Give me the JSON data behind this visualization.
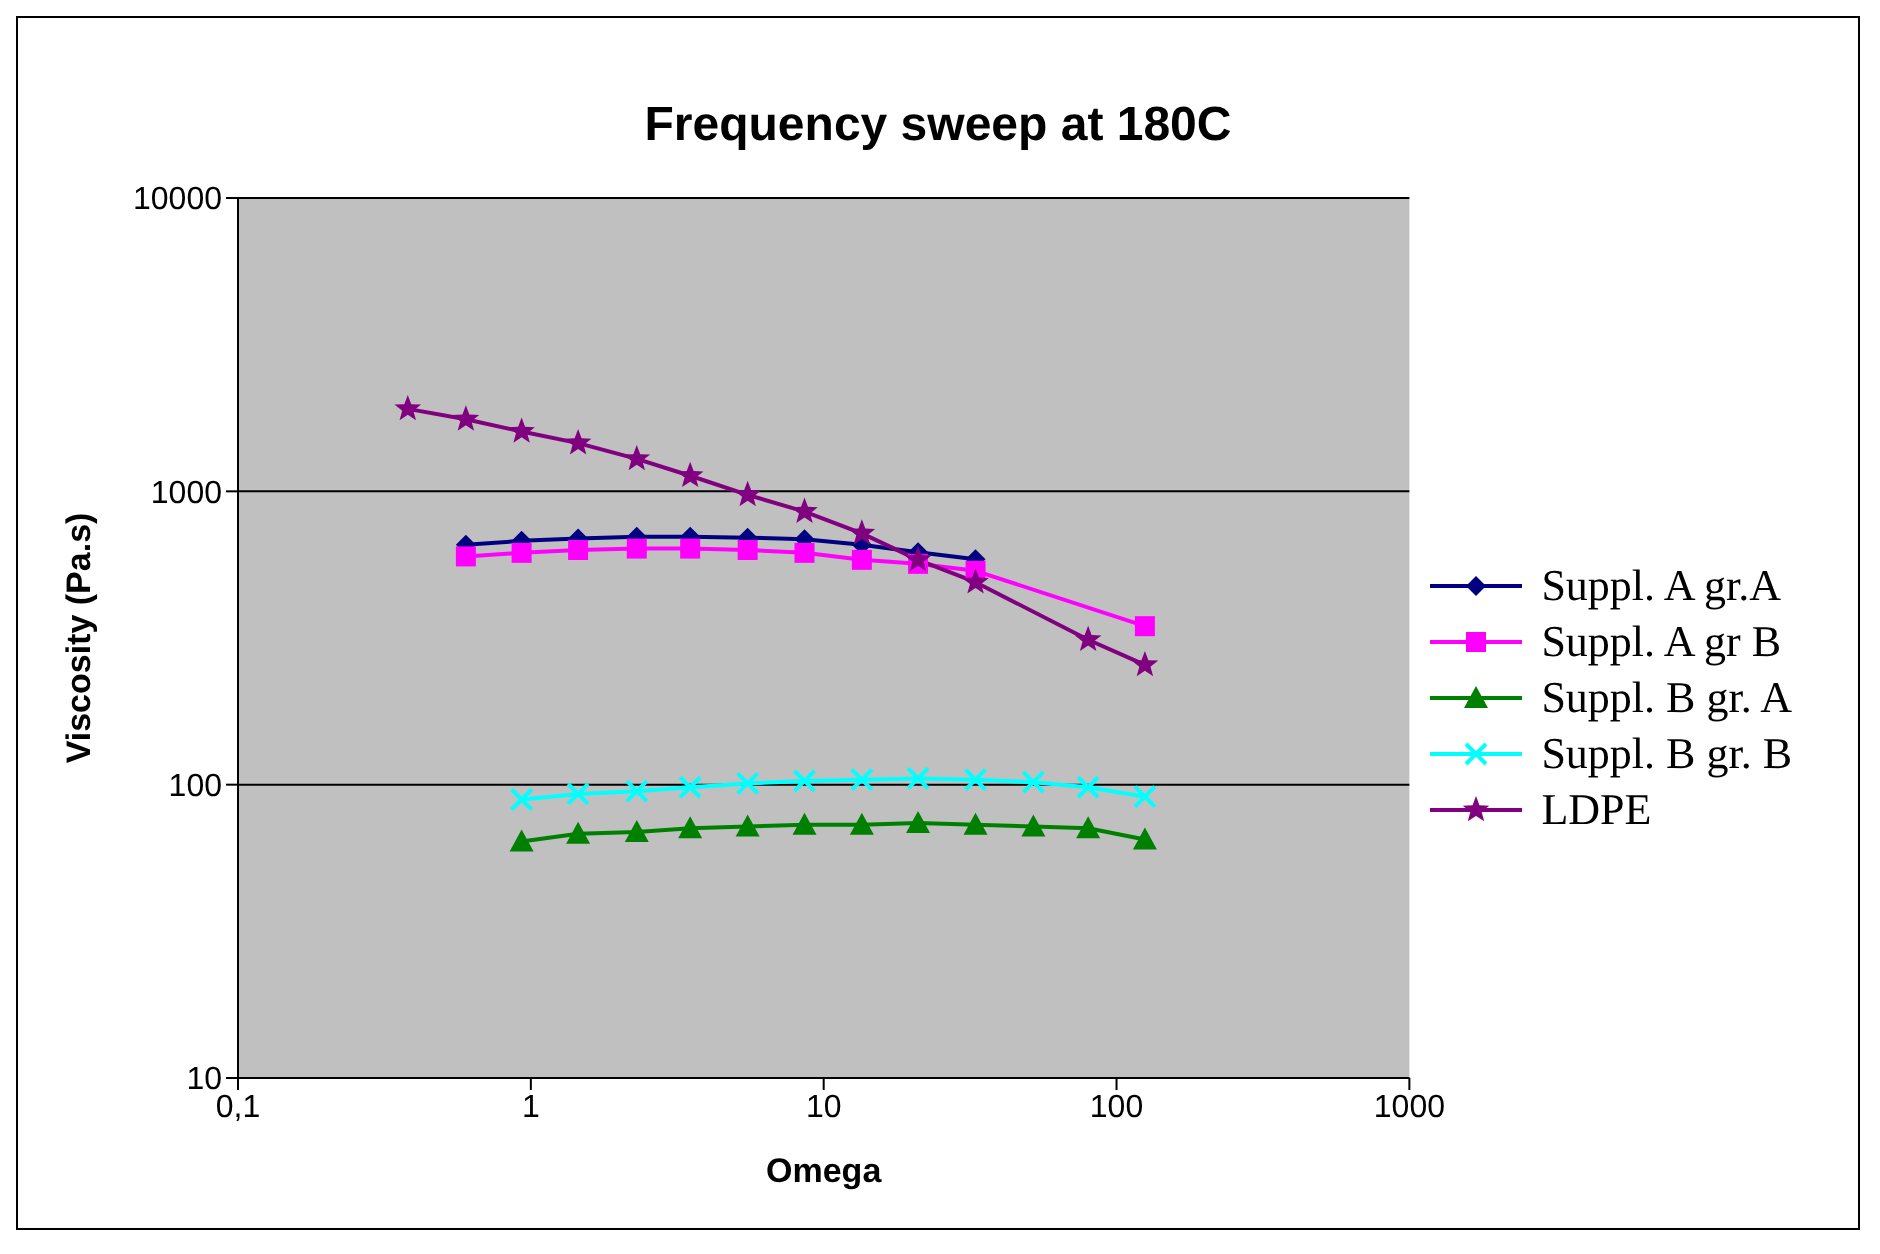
{
  "chart_data": {
    "type": "line",
    "title": "Frequency sweep at 180C",
    "xlabel": "Omega",
    "ylabel": "Viscosity (Pa.s)",
    "log": "xy",
    "grid": "y",
    "legend": "right",
    "xlim": [
      0.1,
      1000
    ],
    "xticks": [
      {
        "value": 0.1,
        "label": "0,1"
      },
      1,
      10,
      100,
      1000
    ],
    "ylim": [
      10,
      10000
    ],
    "yticks": [
      10,
      100,
      1000,
      10000
    ],
    "series": [
      {
        "name": "Suppl. A gr.A",
        "color": "#000080",
        "marker": "diamond",
        "x": [
          0.6,
          0.93,
          1.45,
          2.3,
          3.5,
          5.5,
          8.6,
          13.5,
          21,
          33
        ],
        "values": [
          658,
          678,
          690,
          700,
          700,
          695,
          687,
          658,
          620,
          587
        ]
      },
      {
        "name": "Suppl. A gr B",
        "color": "#ff00ff",
        "marker": "square",
        "x": [
          0.6,
          0.93,
          1.45,
          2.3,
          3.5,
          5.5,
          8.6,
          13.5,
          21,
          33,
          125
        ],
        "values": [
          600,
          617,
          631,
          638,
          638,
          631,
          617,
          584,
          566,
          536,
          347
        ]
      },
      {
        "name": "Suppl. B gr. A",
        "color": "#008000",
        "marker": "triangle",
        "x": [
          0.93,
          1.45,
          2.3,
          3.5,
          5.5,
          8.6,
          13.5,
          21,
          33,
          52,
          80,
          125
        ],
        "values": [
          64,
          68,
          69,
          71,
          72,
          73,
          73,
          74,
          73,
          72,
          71,
          65
        ]
      },
      {
        "name": "Suppl. B gr. B",
        "color": "#00ffff",
        "marker": "cross",
        "x": [
          0.93,
          1.45,
          2.3,
          3.5,
          5.5,
          8.6,
          13.5,
          21,
          33,
          52,
          80,
          125
        ],
        "values": [
          89,
          93,
          95,
          98,
          101,
          103,
          104,
          105,
          104,
          102,
          98,
          91
        ]
      },
      {
        "name": "LDPE",
        "color": "#800080",
        "marker": "star",
        "x": [
          0.38,
          0.6,
          0.93,
          1.45,
          2.3,
          3.5,
          5.5,
          8.6,
          13.5,
          21,
          33,
          80,
          125
        ],
        "values": [
          1910,
          1760,
          1600,
          1460,
          1290,
          1130,
          973,
          853,
          719,
          584,
          490,
          312,
          256
        ]
      }
    ]
  }
}
